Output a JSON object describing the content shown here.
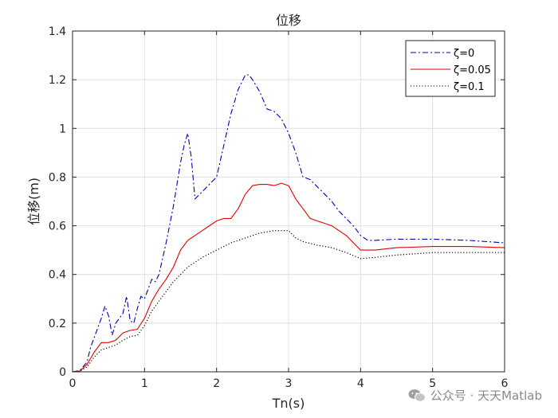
{
  "chart_data": {
    "type": "line",
    "title": "位移",
    "xlabel": "Tn(s)",
    "ylabel": "位移(m)",
    "xlim": [
      0,
      6
    ],
    "ylim": [
      0,
      1.4
    ],
    "xticks": [
      "0",
      "1",
      "2",
      "3",
      "4",
      "5",
      "6"
    ],
    "yticks": [
      "0",
      "0.2",
      "0.4",
      "0.6",
      "0.8",
      "1",
      "1.2",
      "1.4"
    ],
    "grid": true,
    "legend_position": "top-right",
    "series": [
      {
        "name": "ζ=0",
        "color": "#0000b4",
        "dash": "dashdot",
        "x": [
          0,
          0.1,
          0.2,
          0.25,
          0.3,
          0.35,
          0.4,
          0.45,
          0.5,
          0.55,
          0.6,
          0.7,
          0.75,
          0.8,
          0.85,
          0.9,
          0.95,
          1.0,
          1.1,
          1.15,
          1.2,
          1.3,
          1.4,
          1.5,
          1.55,
          1.6,
          1.65,
          1.7,
          1.8,
          1.9,
          2.0,
          2.1,
          2.2,
          2.3,
          2.4,
          2.45,
          2.5,
          2.6,
          2.7,
          2.8,
          2.9,
          3.0,
          3.1,
          3.2,
          3.3,
          3.4,
          3.5,
          3.6,
          3.7,
          3.8,
          3.9,
          4.0,
          4.1,
          4.2,
          4.5,
          5.0,
          5.5,
          6.0
        ],
        "values": [
          0,
          0.005,
          0.04,
          0.1,
          0.14,
          0.18,
          0.22,
          0.27,
          0.23,
          0.15,
          0.2,
          0.24,
          0.31,
          0.21,
          0.2,
          0.26,
          0.31,
          0.3,
          0.38,
          0.37,
          0.4,
          0.53,
          0.68,
          0.86,
          0.93,
          0.98,
          0.88,
          0.71,
          0.74,
          0.77,
          0.8,
          0.93,
          1.06,
          1.16,
          1.22,
          1.22,
          1.2,
          1.15,
          1.08,
          1.07,
          1.04,
          0.98,
          0.9,
          0.8,
          0.79,
          0.76,
          0.73,
          0.7,
          0.66,
          0.63,
          0.6,
          0.56,
          0.54,
          0.54,
          0.545,
          0.545,
          0.54,
          0.53
        ]
      },
      {
        "name": "ζ=0.05",
        "color": "#e00000",
        "dash": "solid",
        "x": [
          0,
          0.1,
          0.2,
          0.3,
          0.4,
          0.5,
          0.6,
          0.7,
          0.8,
          0.9,
          1.0,
          1.1,
          1.2,
          1.3,
          1.4,
          1.5,
          1.6,
          1.8,
          2.0,
          2.1,
          2.2,
          2.3,
          2.4,
          2.5,
          2.6,
          2.7,
          2.8,
          2.9,
          3.0,
          3.1,
          3.2,
          3.3,
          3.4,
          3.5,
          3.6,
          3.8,
          4.0,
          4.2,
          4.5,
          5.0,
          5.5,
          6.0
        ],
        "values": [
          0,
          0.003,
          0.03,
          0.08,
          0.12,
          0.12,
          0.13,
          0.16,
          0.17,
          0.175,
          0.22,
          0.29,
          0.34,
          0.38,
          0.43,
          0.5,
          0.54,
          0.58,
          0.62,
          0.63,
          0.63,
          0.67,
          0.73,
          0.765,
          0.77,
          0.77,
          0.765,
          0.775,
          0.765,
          0.71,
          0.67,
          0.63,
          0.62,
          0.61,
          0.6,
          0.56,
          0.5,
          0.5,
          0.51,
          0.515,
          0.515,
          0.51
        ]
      },
      {
        "name": "ζ=0.1",
        "color": "#000000",
        "dash": "dotted",
        "x": [
          0,
          0.1,
          0.2,
          0.3,
          0.4,
          0.5,
          0.6,
          0.7,
          0.8,
          0.9,
          1.0,
          1.1,
          1.2,
          1.4,
          1.6,
          1.8,
          2.0,
          2.2,
          2.4,
          2.6,
          2.8,
          3.0,
          3.1,
          3.2,
          3.4,
          3.6,
          3.8,
          4.0,
          4.2,
          4.5,
          5.0,
          5.5,
          6.0
        ],
        "values": [
          0,
          0.002,
          0.02,
          0.06,
          0.09,
          0.1,
          0.11,
          0.13,
          0.145,
          0.15,
          0.19,
          0.25,
          0.29,
          0.37,
          0.43,
          0.47,
          0.5,
          0.53,
          0.55,
          0.57,
          0.58,
          0.58,
          0.55,
          0.535,
          0.52,
          0.51,
          0.49,
          0.465,
          0.47,
          0.48,
          0.49,
          0.49,
          0.49
        ]
      }
    ]
  },
  "watermark": {
    "text": "公众号 · 天天Matlab",
    "icon": "wechat-icon"
  }
}
